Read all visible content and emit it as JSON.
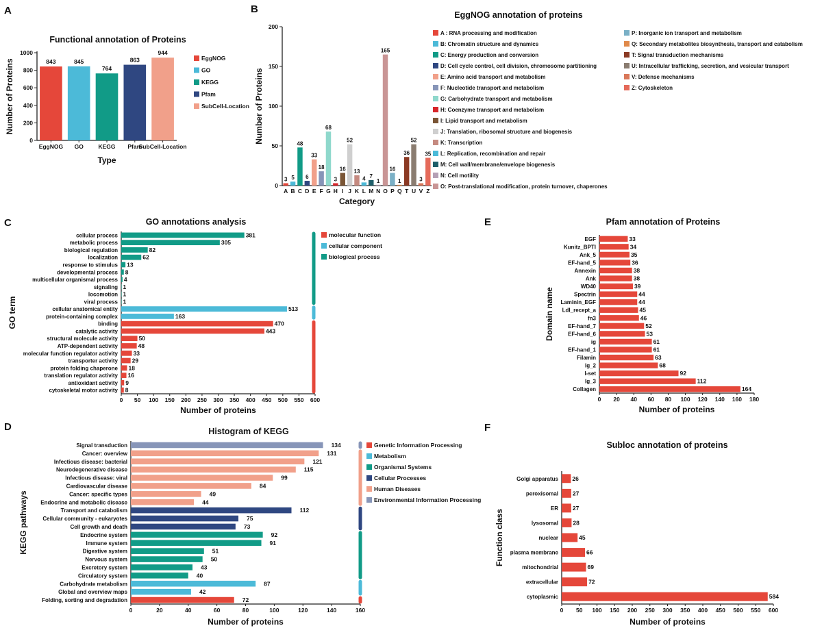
{
  "colors": {
    "red": "#e5473a",
    "blue": "#4cbad8",
    "teal": "#119b87",
    "navy": "#2f4781",
    "salmon": "#f1a08a",
    "slate": "#8795b8"
  },
  "chart_data": [
    {
      "id": "A",
      "type": "bar",
      "panel_label": "A",
      "title": "Functional annotation of Proteins",
      "xlabel": "Type",
      "ylabel": "Number of Proteins",
      "categories": [
        "EggNOG",
        "GO",
        "KEGG",
        "Pfam",
        "SubCell-Location"
      ],
      "values": [
        843,
        845,
        764,
        863,
        944
      ],
      "colors": [
        "#e5473a",
        "#4cbad8",
        "#119b87",
        "#2f4781",
        "#f1a08a"
      ],
      "ylim": [
        0,
        1000
      ],
      "yticks": [
        0,
        200,
        400,
        600,
        800,
        1000
      ],
      "legend": [
        {
          "label": "EggNOG",
          "color": "#e5473a"
        },
        {
          "label": "GO",
          "color": "#4cbad8"
        },
        {
          "label": "KEGG",
          "color": "#119b87"
        },
        {
          "label": "Pfam",
          "color": "#2f4781"
        },
        {
          "label": "SubCell-Location",
          "color": "#f1a08a"
        }
      ]
    },
    {
      "id": "B",
      "type": "bar",
      "panel_label": "B",
      "title": "EggNOG annotation of proteins",
      "xlabel": "Category",
      "ylabel": "Number of Proteins",
      "categories": [
        "A",
        "B",
        "C",
        "D",
        "E",
        "F",
        "G",
        "H",
        "I",
        "J",
        "K",
        "L",
        "M",
        "N",
        "O",
        "P",
        "Q",
        "T",
        "U",
        "V",
        "Z"
      ],
      "values": [
        3,
        5,
        48,
        6,
        33,
        18,
        68,
        3,
        16,
        52,
        13,
        4,
        7,
        1,
        165,
        16,
        1,
        36,
        52,
        3,
        35
      ],
      "colors": [
        "#e5473a",
        "#4cbad8",
        "#119b87",
        "#2f4781",
        "#f1a08a",
        "#8795b8",
        "#8fd8cc",
        "#d7262a",
        "#7a5535",
        "#cfcfcf",
        "#c58a80",
        "#4cbad8",
        "#1f5f6a",
        "#b5a0b5",
        "#c99595",
        "#7ab0c6",
        "#e08a4a",
        "#8b3a24",
        "#8a7c70",
        "#d9785a",
        "#e56a5a"
      ],
      "ylim": [
        0,
        200
      ],
      "yticks": [
        0,
        50,
        100,
        150,
        200
      ],
      "legend": [
        {
          "label": "A : RNA processing and modification",
          "color": "#e5473a"
        },
        {
          "label": "B: Chromatin structure and dynamics",
          "color": "#4cbad8"
        },
        {
          "label": "C: Energy production and conversion",
          "color": "#119b87"
        },
        {
          "label": "D: Cell cycle control, cell division, chromosome partitioning",
          "color": "#2f4781"
        },
        {
          "label": "E: Amino acid transport and metabolism",
          "color": "#f1a08a"
        },
        {
          "label": "F: Nucleotide transport and metabolism",
          "color": "#8795b8"
        },
        {
          "label": "G: Carbohydrate transport and metabolism",
          "color": "#8fd8cc"
        },
        {
          "label": "H: Coenzyme transport and metabolism",
          "color": "#d7262a"
        },
        {
          "label": "I: Lipid transport and metabolism",
          "color": "#7a5535"
        },
        {
          "label": "J: Translation, ribosomal structure and biogenesis",
          "color": "#cfcfcf"
        },
        {
          "label": "K: Transcription",
          "color": "#c58a80"
        },
        {
          "label": "L: Replication, recombination and repair",
          "color": "#4cbad8"
        },
        {
          "label": "M: Cell wall/membrane/envelope biogenesis",
          "color": "#1f5f6a"
        },
        {
          "label": "N: Cell motility",
          "color": "#b5a0b5"
        },
        {
          "label": "O: Post-translational modification, protein turnover, chaperones",
          "color": "#c99595"
        },
        {
          "label": "P: Inorganic ion transport and metabolism",
          "color": "#7ab0c6"
        },
        {
          "label": "Q: Secondary metabolites biosynthesis, transport and catabolism",
          "color": "#e08a4a"
        },
        {
          "label": "T: Signal transduction mechanisms",
          "color": "#8b3a24"
        },
        {
          "label": "U: Intracellular trafficking, secretion, and vesicular transport",
          "color": "#8a7c70"
        },
        {
          "label": "V: Defense mechanisms",
          "color": "#d9785a"
        },
        {
          "label": "Z: Cytoskeleton",
          "color": "#e56a5a"
        }
      ]
    },
    {
      "id": "C",
      "type": "bar",
      "orientation": "horizontal",
      "panel_label": "C",
      "title": "GO annotations analysis",
      "xlabel": "Number of proteins",
      "ylabel": "GO term",
      "categories": [
        "cellular process",
        "metabolic process",
        "biological regulation",
        "localization",
        "response to stimulus",
        "developmental process",
        "multicellular organismal process",
        "signaling",
        "locomotion",
        "viral process",
        "cellular anatomical entity",
        "protein-containing complex",
        "binding",
        "catalytic activity",
        "structural molecule activity",
        "ATP-dependent activity",
        "molecular function regulator activity",
        "transporter activity",
        "protein folding chaperone",
        "translation regulator activity",
        "antioxidant activity",
        "cytoskeletal motor activity"
      ],
      "values": [
        381,
        305,
        82,
        62,
        13,
        8,
        4,
        1,
        1,
        1,
        513,
        163,
        470,
        443,
        50,
        48,
        33,
        29,
        18,
        16,
        9,
        8
      ],
      "groups": [
        "bp",
        "bp",
        "bp",
        "bp",
        "bp",
        "bp",
        "bp",
        "bp",
        "bp",
        "bp",
        "cc",
        "cc",
        "mf",
        "mf",
        "mf",
        "mf",
        "mf",
        "mf",
        "mf",
        "mf",
        "mf",
        "mf"
      ],
      "group_colors": {
        "bp": "#119b87",
        "cc": "#4cbad8",
        "mf": "#e5473a"
      },
      "xlim": [
        0,
        600
      ],
      "xticks": [
        0,
        50,
        100,
        150,
        200,
        250,
        300,
        350,
        400,
        450,
        500,
        550,
        600
      ],
      "legend": [
        {
          "label": "molecular function",
          "color": "#e5473a"
        },
        {
          "label": "cellular component",
          "color": "#4cbad8"
        },
        {
          "label": "biological process",
          "color": "#119b87"
        }
      ]
    },
    {
      "id": "D",
      "type": "bar",
      "orientation": "horizontal",
      "panel_label": "D",
      "title": "Histogram of KEGG",
      "xlabel": "Number of proteins",
      "ylabel": "KEGG pathways",
      "categories": [
        "Signal transduction",
        "Cancer: overview",
        "Infectious disease: bacterial",
        "Neurodegenerative disease",
        "Infectious disease: viral",
        "Cardiovascular disease",
        "Cancer: specific types",
        "Endocrine and metabolic disease",
        "Transport and catabolism",
        "Cellular community - eukaryotes",
        "Cell growth and death",
        "Endocrine system",
        "Immune system",
        "Digestive system",
        "Nervous system",
        "Excretory system",
        "Circulatory system",
        "Carbohydrate metabolism",
        "Global and overview maps",
        "Folding, sorting and degradation"
      ],
      "values": [
        134,
        131,
        121,
        115,
        99,
        84,
        49,
        44,
        112,
        75,
        73,
        92,
        91,
        51,
        50,
        43,
        40,
        87,
        42,
        72
      ],
      "groups": [
        "env",
        "hd",
        "hd",
        "hd",
        "hd",
        "hd",
        "hd",
        "hd",
        "cp",
        "cp",
        "cp",
        "os",
        "os",
        "os",
        "os",
        "os",
        "os",
        "met",
        "met",
        "gip"
      ],
      "group_colors": {
        "env": "#8795b8",
        "hd": "#f1a08a",
        "cp": "#2f4781",
        "os": "#119b87",
        "met": "#4cbad8",
        "gip": "#e5473a"
      },
      "xlim": [
        0,
        160
      ],
      "xticks": [
        0,
        20,
        40,
        60,
        80,
        100,
        120,
        140,
        160
      ],
      "legend": [
        {
          "label": "Genetic Information Processing",
          "color": "#e5473a"
        },
        {
          "label": "Metabolism",
          "color": "#4cbad8"
        },
        {
          "label": "Organismal Systems",
          "color": "#119b87"
        },
        {
          "label": "Cellular Processes",
          "color": "#2f4781"
        },
        {
          "label": "Human Diseases",
          "color": "#f1a08a"
        },
        {
          "label": "Environmental Information Processing",
          "color": "#8795b8"
        }
      ]
    },
    {
      "id": "E",
      "type": "bar",
      "orientation": "horizontal",
      "panel_label": "E",
      "title": "Pfam annotation of Proteins",
      "xlabel": "Number of proteins",
      "ylabel": "Domain name",
      "categories": [
        "EGF",
        "Kunitz_BPTI",
        "Ank_5",
        "EF-hand_5",
        "Annexin",
        "Ank",
        "WD40",
        "Spectrin",
        "Laminin_EGF",
        "Ldl_recept_a",
        "fn3",
        "EF-hand_7",
        "EF-hand_6",
        "ig",
        "EF-hand_1",
        "Filamin",
        "Ig_2",
        "I-set",
        "Ig_3",
        "Collagen"
      ],
      "values": [
        33,
        34,
        35,
        36,
        38,
        38,
        39,
        44,
        44,
        45,
        46,
        52,
        53,
        61,
        61,
        63,
        68,
        92,
        112,
        164
      ],
      "xlim": [
        0,
        180
      ],
      "xticks": [
        0,
        20,
        40,
        60,
        80,
        100,
        120,
        140,
        160,
        180
      ]
    },
    {
      "id": "F",
      "type": "bar",
      "orientation": "horizontal",
      "panel_label": "F",
      "title": "Subloc annotation of proteins",
      "xlabel": "Number of proteins",
      "ylabel": "Function class",
      "categories": [
        "Golgi apparatus",
        "peroxisomal",
        "ER",
        "lysosomal",
        "nuclear",
        "plasma membrane",
        "mitochondrial",
        "extracellular",
        "cytoplasmic"
      ],
      "values": [
        26,
        27,
        27,
        28,
        45,
        66,
        69,
        72,
        584
      ],
      "xlim": [
        0,
        600
      ],
      "xticks": [
        0,
        50,
        100,
        150,
        200,
        250,
        300,
        350,
        400,
        450,
        500,
        550,
        600
      ]
    }
  ]
}
